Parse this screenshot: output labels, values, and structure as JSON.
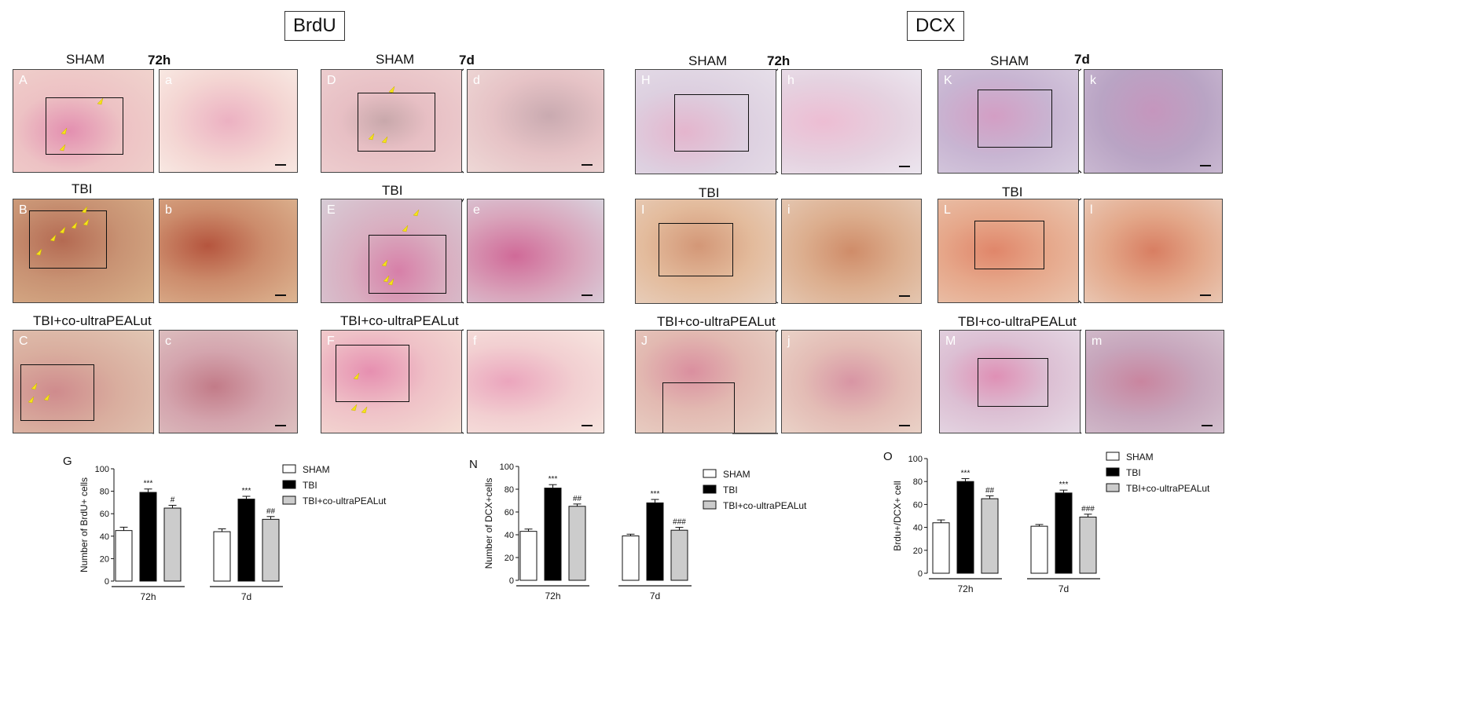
{
  "titles": {
    "brdu": "BrdU",
    "dcx": "DCX"
  },
  "headers": {
    "g1": {
      "group": "SHAM",
      "time": "72h"
    },
    "g2": {
      "group": "SHAM",
      "time": "7d"
    },
    "g3": {
      "group": "SHAM",
      "time": "72h"
    },
    "g4": {
      "group": "SHAM",
      "time": "7d"
    },
    "tbi": "TBI",
    "treat": "TBI+co-ultraPEALut"
  },
  "panels": {
    "A": "A",
    "a": "a",
    "B": "B",
    "b": "b",
    "C": "C",
    "c": "c",
    "D": "D",
    "d": "d",
    "E": "E",
    "e": "e",
    "F": "F",
    "f": "f",
    "H": "H",
    "h": "h",
    "I": "I",
    "i": "i",
    "J": "J",
    "j": "j",
    "K": "K",
    "k": "k",
    "L": "L",
    "l": "l",
    "M": "M",
    "m": "m"
  },
  "colors": {
    "sham_tissue": "#efc6c6",
    "tbi_tissue": "#d29a78",
    "dcx_sham_tissue": "#d9c6db",
    "dcx_tbi_tissue": "#e2a57c",
    "arrow": "#f5e21a",
    "bar_sham": "#ffffff",
    "bar_tbi": "#000000",
    "bar_treat": "#cccccc"
  },
  "legend": [
    "SHAM",
    "TBI",
    "TBI+co-ultraPEALut"
  ],
  "chart_data": [
    {
      "letter": "G",
      "type": "bar",
      "ylabel": "Number of BrdU+ cells",
      "ylim": [
        0,
        100
      ],
      "yticks": [
        0,
        20,
        40,
        60,
        80,
        100
      ],
      "categories": [
        "72h",
        "7d"
      ],
      "series": [
        {
          "name": "SHAM",
          "values": [
            45,
            44
          ],
          "errors": [
            3,
            2.5
          ]
        },
        {
          "name": "TBI",
          "values": [
            79,
            73
          ],
          "errors": [
            3,
            2.5
          ]
        },
        {
          "name": "TBI+co-ultraPEALut",
          "values": [
            65,
            55
          ],
          "errors": [
            2.5,
            2.5
          ]
        }
      ],
      "annotations": [
        [
          "",
          "***",
          "#"
        ],
        [
          "",
          "***",
          "##"
        ]
      ]
    },
    {
      "letter": "N",
      "type": "bar",
      "ylabel": "Number of DCX+cells",
      "ylim": [
        0,
        100
      ],
      "yticks": [
        0,
        20,
        40,
        60,
        80,
        100
      ],
      "categories": [
        "72h",
        "7d"
      ],
      "series": [
        {
          "name": "SHAM",
          "values": [
            43,
            39
          ],
          "errors": [
            2,
            1.5
          ]
        },
        {
          "name": "TBI",
          "values": [
            81,
            68
          ],
          "errors": [
            3,
            3
          ]
        },
        {
          "name": "TBI+co-ultraPEALut",
          "values": [
            65,
            44
          ],
          "errors": [
            2,
            2.5
          ]
        }
      ],
      "annotations": [
        [
          "",
          "***",
          "##"
        ],
        [
          "",
          "***",
          "###"
        ]
      ]
    },
    {
      "letter": "O",
      "type": "bar",
      "ylabel": "Brdu+/DCX+ cell",
      "ylim": [
        0,
        100
      ],
      "yticks": [
        0,
        20,
        40,
        60,
        80,
        100
      ],
      "categories": [
        "72h",
        "7d"
      ],
      "series": [
        {
          "name": "SHAM",
          "values": [
            44,
            41
          ],
          "errors": [
            2.5,
            1.5
          ]
        },
        {
          "name": "TBI",
          "values": [
            80,
            70
          ],
          "errors": [
            2.5,
            2.5
          ]
        },
        {
          "name": "TBI+co-ultraPEALut",
          "values": [
            65,
            49
          ],
          "errors": [
            2.5,
            2.5
          ]
        }
      ],
      "annotations": [
        [
          "",
          "***",
          "##"
        ],
        [
          "",
          "***",
          "###"
        ]
      ]
    }
  ]
}
